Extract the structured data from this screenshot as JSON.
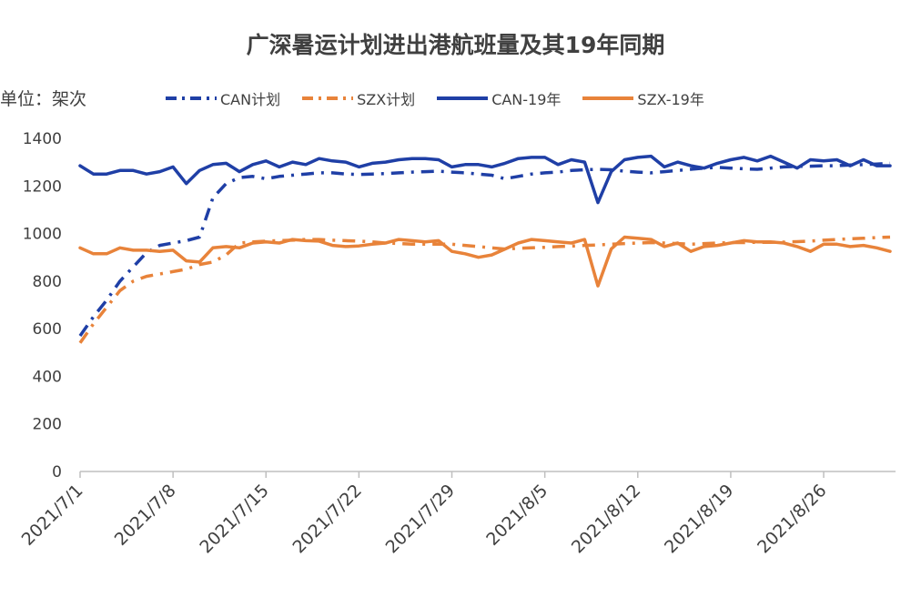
{
  "colors": {
    "can": "#1f3fa6",
    "szx": "#e8833a",
    "axis": "#bfbfbf",
    "text": "#404040"
  },
  "chart_data": {
    "type": "line",
    "title": "广深暑运计划进出港航班量及其19年同期",
    "unit_label": "单位：架次",
    "xlabel": "",
    "ylabel": "",
    "ylim": [
      0,
      1400
    ],
    "yticks": [
      0,
      200,
      400,
      600,
      800,
      1000,
      1200,
      1400
    ],
    "x_start": "2021/7/1",
    "x_end": "2021/8/31",
    "xtick_labels": [
      "2021/7/1",
      "2021/7/8",
      "2021/7/15",
      "2021/7/22",
      "2021/7/29",
      "2021/8/5",
      "2021/8/12",
      "2021/8/19",
      "2021/8/26"
    ],
    "grid": false,
    "legend_position": "top",
    "series": [
      {
        "name": "CAN计划",
        "style": "dashdot",
        "color": "#1f3fa6",
        "values": [
          570,
          650,
          720,
          800,
          860,
          920,
          950,
          960,
          970,
          985,
          1150,
          1210,
          1235,
          1240,
          1230,
          1240,
          1245,
          1250,
          1255,
          1255,
          1250,
          1248,
          1250,
          1252,
          1255,
          1258,
          1260,
          1262,
          1258,
          1255,
          1250,
          1245,
          1230,
          1240,
          1250,
          1255,
          1258,
          1265,
          1268,
          1270,
          1268,
          1262,
          1258,
          1255,
          1260,
          1265,
          1270,
          1275,
          1278,
          1275,
          1272,
          1270,
          1275,
          1280,
          1282,
          1283,
          1285,
          1285,
          1288,
          1290,
          1292,
          1295
        ]
      },
      {
        "name": "SZX计划",
        "style": "dashdot",
        "color": "#e8833a",
        "values": [
          540,
          620,
          690,
          760,
          800,
          820,
          830,
          840,
          850,
          870,
          880,
          910,
          960,
          965,
          968,
          970,
          972,
          975,
          975,
          972,
          970,
          968,
          965,
          960,
          958,
          955,
          955,
          956,
          955,
          950,
          945,
          940,
          935,
          938,
          940,
          942,
          945,
          947,
          950,
          952,
          955,
          958,
          960,
          962,
          960,
          958,
          955,
          958,
          960,
          962,
          962,
          963,
          963,
          964,
          966,
          968,
          972,
          975,
          978,
          980,
          983,
          985
        ]
      },
      {
        "name": "CAN-19年",
        "style": "solid",
        "color": "#1f3fa6",
        "values": [
          1285,
          1250,
          1250,
          1265,
          1265,
          1250,
          1260,
          1280,
          1210,
          1265,
          1290,
          1295,
          1260,
          1290,
          1305,
          1280,
          1300,
          1290,
          1315,
          1305,
          1300,
          1280,
          1295,
          1300,
          1310,
          1315,
          1315,
          1310,
          1280,
          1290,
          1290,
          1280,
          1295,
          1315,
          1320,
          1320,
          1290,
          1310,
          1300,
          1130,
          1260,
          1310,
          1320,
          1325,
          1280,
          1300,
          1285,
          1275,
          1295,
          1310,
          1320,
          1305,
          1325,
          1300,
          1275,
          1310,
          1305,
          1310,
          1285,
          1310,
          1285,
          1285
        ]
      },
      {
        "name": "SZX-19年",
        "style": "solid",
        "color": "#e8833a",
        "values": [
          940,
          915,
          915,
          940,
          930,
          930,
          925,
          930,
          885,
          880,
          940,
          945,
          940,
          960,
          965,
          960,
          975,
          970,
          968,
          950,
          945,
          948,
          955,
          960,
          975,
          970,
          965,
          970,
          925,
          915,
          900,
          910,
          935,
          960,
          975,
          970,
          965,
          960,
          975,
          780,
          935,
          985,
          980,
          975,
          945,
          960,
          925,
          945,
          950,
          960,
          970,
          965,
          965,
          960,
          945,
          925,
          955,
          955,
          945,
          950,
          940,
          925
        ]
      }
    ]
  }
}
